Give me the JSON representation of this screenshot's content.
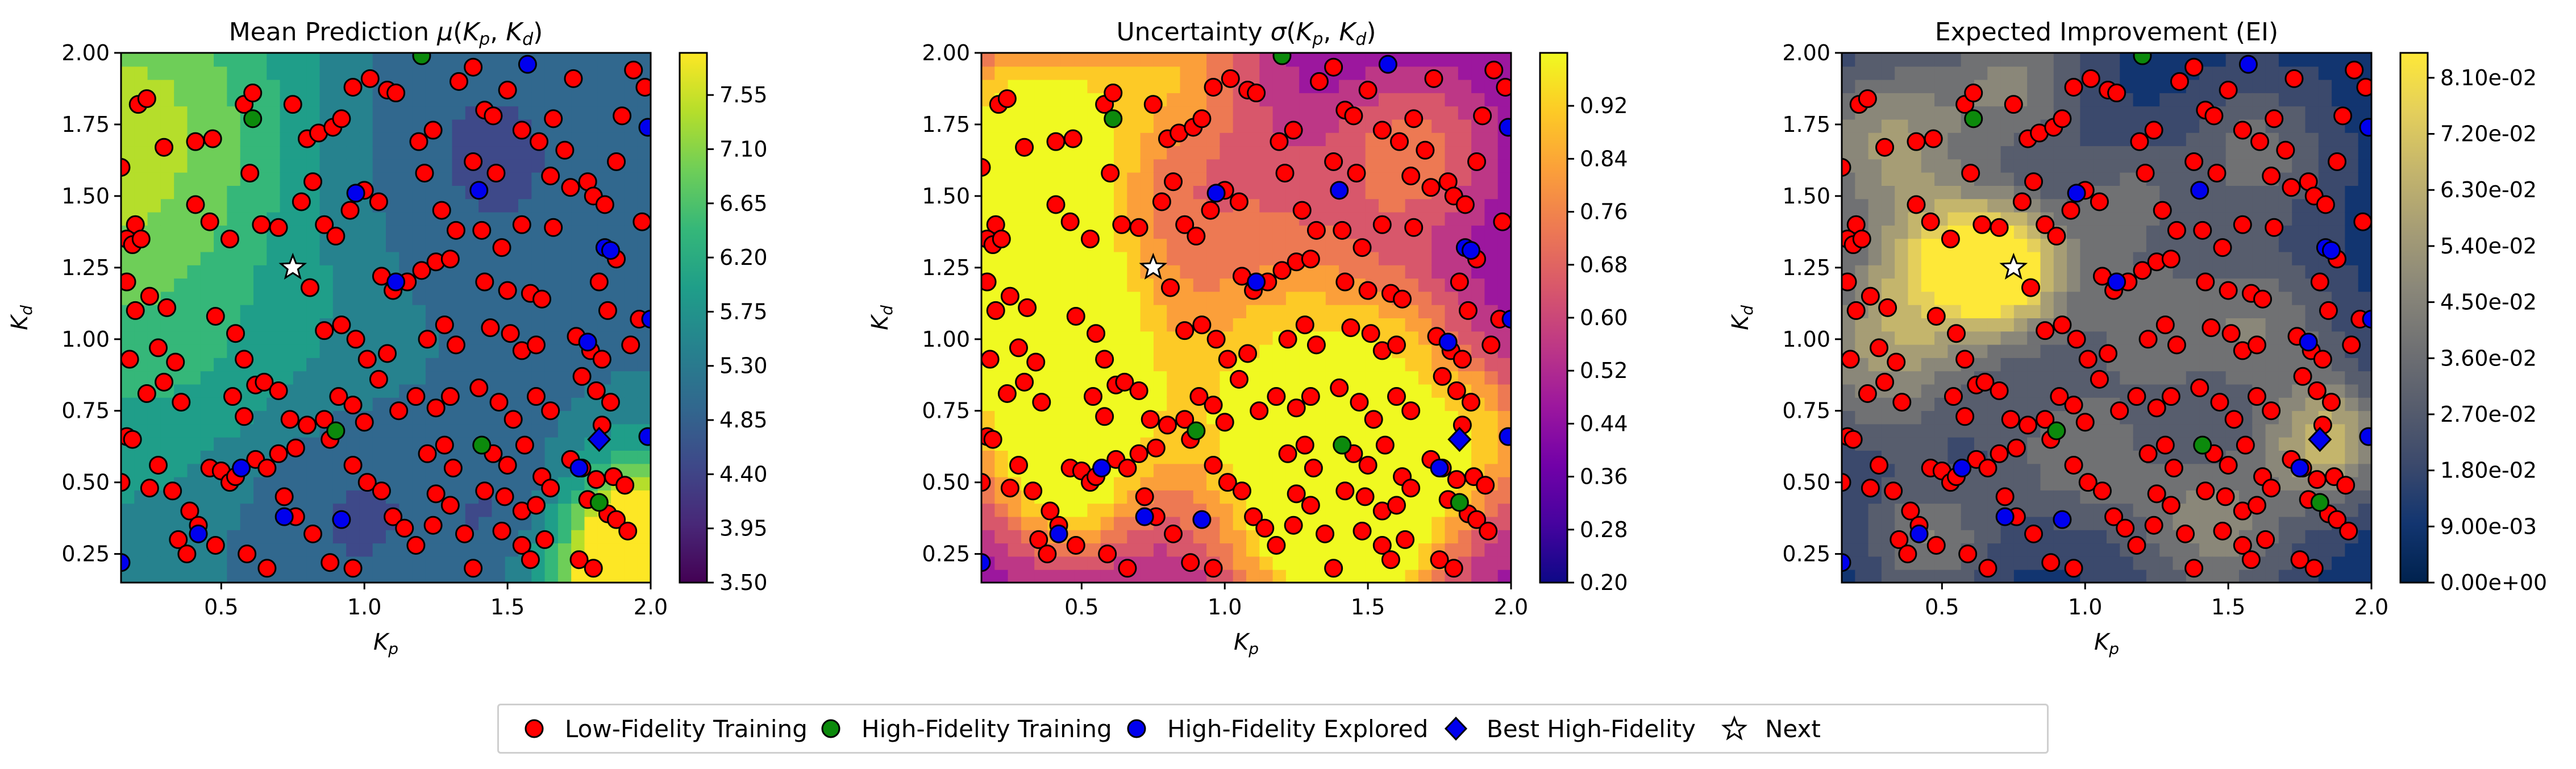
{
  "colors": {
    "low_fidelity": "#ff0000",
    "high_fidelity_training": "#0c8a0c",
    "high_fidelity_explored": "#0000ee",
    "best_high_fidelity": "#0000ee",
    "next": "#ffffff"
  },
  "chart_data": [
    {
      "type": "heatmap",
      "title": "Mean Prediction μ(Kp, Kd)",
      "title_parts": {
        "prefix": "Mean Prediction ",
        "symbol": "μ",
        "open": "(",
        "k1": "K",
        "s1": "p",
        "sep": ", ",
        "k2": "K",
        "s2": "d",
        "close": ")"
      },
      "xlabel": {
        "main": "K",
        "sub": "p"
      },
      "ylabel": {
        "main": "K",
        "sub": "d"
      },
      "xlim": [
        0.15,
        2.0
      ],
      "ylim": [
        0.15,
        2.0
      ],
      "xticks": [
        "0.5",
        "1.0",
        "1.5",
        "2.0"
      ],
      "yticks": [
        "0.25",
        "0.50",
        "0.75",
        "1.00",
        "1.25",
        "1.50",
        "1.75",
        "2.00"
      ],
      "colormap": "viridis",
      "colorbar_range": [
        3.5,
        7.9
      ],
      "colorbar_ticks": [
        "3.50",
        "3.95",
        "4.40",
        "4.85",
        "5.30",
        "5.75",
        "6.20",
        "6.65",
        "7.10",
        "7.55"
      ]
    },
    {
      "type": "heatmap",
      "title": "Uncertainty σ(Kp, Kd)",
      "title_parts": {
        "prefix": "Uncertainty ",
        "symbol": "σ",
        "open": "(",
        "k1": "K",
        "s1": "p",
        "sep": ", ",
        "k2": "K",
        "s2": "d",
        "close": ")"
      },
      "xlabel": {
        "main": "K",
        "sub": "p"
      },
      "ylabel": {
        "main": "K",
        "sub": "d"
      },
      "xlim": [
        0.15,
        2.0
      ],
      "ylim": [
        0.15,
        2.0
      ],
      "xticks": [
        "0.5",
        "1.0",
        "1.5",
        "2.0"
      ],
      "yticks": [
        "0.25",
        "0.50",
        "0.75",
        "1.00",
        "1.25",
        "1.50",
        "1.75",
        "2.00"
      ],
      "colormap": "plasma",
      "colorbar_range": [
        0.2,
        1.0
      ],
      "colorbar_ticks": [
        "0.20",
        "0.28",
        "0.36",
        "0.44",
        "0.52",
        "0.60",
        "0.68",
        "0.76",
        "0.84",
        "0.92"
      ]
    },
    {
      "type": "heatmap",
      "title": "Expected Improvement (EI)",
      "title_parts": {
        "prefix": "Expected Improvement (EI)",
        "symbol": "",
        "open": "",
        "k1": "",
        "s1": "",
        "sep": "",
        "k2": "",
        "s2": "",
        "close": ""
      },
      "xlabel": {
        "main": "K",
        "sub": "p"
      },
      "ylabel": {
        "main": "K",
        "sub": "d"
      },
      "xlim": [
        0.15,
        2.0
      ],
      "ylim": [
        0.15,
        2.0
      ],
      "xticks": [
        "0.5",
        "1.0",
        "1.5",
        "2.0"
      ],
      "yticks": [
        "0.25",
        "0.50",
        "0.75",
        "1.00",
        "1.25",
        "1.50",
        "1.75",
        "2.00"
      ],
      "colormap": "cividis",
      "colorbar_range": [
        0.0,
        0.085
      ],
      "colorbar_ticks": [
        "0.00e+00",
        "9.00e-03",
        "1.80e-02",
        "2.70e-02",
        "3.60e-02",
        "4.50e-02",
        "5.40e-02",
        "6.30e-02",
        "7.20e-02",
        "8.10e-02"
      ]
    }
  ],
  "points": {
    "low_fidelity": [
      [
        0.21,
        1.82
      ],
      [
        0.24,
        1.84
      ],
      [
        0.15,
        1.6
      ],
      [
        0.3,
        1.67
      ],
      [
        0.2,
        1.4
      ],
      [
        0.17,
        1.35
      ],
      [
        0.19,
        1.33
      ],
      [
        0.22,
        1.35
      ],
      [
        0.17,
        1.2
      ],
      [
        0.25,
        1.15
      ],
      [
        0.2,
        1.1
      ],
      [
        0.31,
        1.11
      ],
      [
        0.18,
        0.93
      ],
      [
        0.28,
        0.97
      ],
      [
        0.34,
        0.92
      ],
      [
        0.24,
        0.81
      ],
      [
        0.3,
        0.85
      ],
      [
        0.36,
        0.78
      ],
      [
        0.17,
        0.66
      ],
      [
        0.19,
        0.65
      ],
      [
        0.15,
        0.5
      ],
      [
        0.25,
        0.48
      ],
      [
        0.28,
        0.56
      ],
      [
        0.33,
        0.47
      ],
      [
        0.39,
        0.4
      ],
      [
        0.42,
        0.35
      ],
      [
        0.46,
        0.55
      ],
      [
        0.5,
        0.54
      ],
      [
        0.53,
        0.5
      ],
      [
        0.55,
        0.52
      ],
      [
        0.35,
        0.3
      ],
      [
        0.38,
        0.25
      ],
      [
        0.48,
        0.28
      ],
      [
        0.41,
        1.69
      ],
      [
        0.47,
        1.7
      ],
      [
        0.41,
        1.47
      ],
      [
        0.46,
        1.41
      ],
      [
        0.53,
        1.35
      ],
      [
        0.58,
        1.82
      ],
      [
        0.61,
        1.86
      ],
      [
        0.6,
        1.58
      ],
      [
        0.64,
        1.4
      ],
      [
        0.7,
        1.39
      ],
      [
        0.48,
        1.08
      ],
      [
        0.55,
        1.02
      ],
      [
        0.58,
        0.93
      ],
      [
        0.54,
        0.8
      ],
      [
        0.62,
        0.84
      ],
      [
        0.65,
        0.85
      ],
      [
        0.7,
        0.82
      ],
      [
        0.58,
        0.73
      ],
      [
        0.62,
        0.58
      ],
      [
        0.66,
        0.55
      ],
      [
        0.7,
        0.6
      ],
      [
        0.76,
        0.62
      ],
      [
        0.74,
        0.72
      ],
      [
        0.8,
        0.7
      ],
      [
        0.86,
        0.72
      ],
      [
        0.88,
        0.65
      ],
      [
        0.72,
        0.45
      ],
      [
        0.76,
        0.38
      ],
      [
        0.82,
        0.32
      ],
      [
        0.88,
        0.22
      ],
      [
        0.96,
        0.2
      ],
      [
        0.59,
        0.25
      ],
      [
        0.66,
        0.2
      ],
      [
        0.75,
        1.82
      ],
      [
        0.8,
        1.7
      ],
      [
        0.84,
        1.72
      ],
      [
        0.89,
        1.74
      ],
      [
        0.92,
        1.77
      ],
      [
        0.96,
        1.88
      ],
      [
        1.02,
        1.91
      ],
      [
        1.08,
        1.87
      ],
      [
        1.11,
        1.86
      ],
      [
        0.82,
        1.55
      ],
      [
        0.78,
        1.48
      ],
      [
        0.86,
        1.4
      ],
      [
        0.9,
        1.36
      ],
      [
        0.95,
        1.45
      ],
      [
        1.0,
        1.52
      ],
      [
        1.05,
        1.48
      ],
      [
        0.81,
        1.18
      ],
      [
        0.86,
        1.03
      ],
      [
        0.92,
        1.05
      ],
      [
        0.97,
        1.0
      ],
      [
        1.01,
        0.93
      ],
      [
        1.06,
        1.22
      ],
      [
        1.1,
        1.17
      ],
      [
        1.15,
        1.2
      ],
      [
        1.08,
        0.95
      ],
      [
        0.91,
        0.8
      ],
      [
        0.96,
        0.77
      ],
      [
        1.0,
        0.71
      ],
      [
        1.05,
        0.86
      ],
      [
        1.12,
        0.75
      ],
      [
        1.18,
        0.8
      ],
      [
        0.96,
        0.56
      ],
      [
        1.01,
        0.5
      ],
      [
        1.06,
        0.47
      ],
      [
        1.1,
        0.38
      ],
      [
        1.14,
        0.34
      ],
      [
        1.18,
        0.28
      ],
      [
        1.19,
        1.69
      ],
      [
        1.24,
        1.73
      ],
      [
        1.21,
        1.58
      ],
      [
        1.27,
        1.45
      ],
      [
        1.32,
        1.38
      ],
      [
        1.2,
        1.24
      ],
      [
        1.25,
        1.27
      ],
      [
        1.3,
        1.28
      ],
      [
        1.22,
        1.0
      ],
      [
        1.28,
        1.05
      ],
      [
        1.32,
        0.98
      ],
      [
        1.25,
        0.76
      ],
      [
        1.3,
        0.8
      ],
      [
        1.22,
        0.6
      ],
      [
        1.28,
        0.63
      ],
      [
        1.31,
        0.55
      ],
      [
        1.25,
        0.46
      ],
      [
        1.3,
        0.42
      ],
      [
        1.24,
        0.35
      ],
      [
        1.35,
        0.32
      ],
      [
        1.38,
        0.2
      ],
      [
        1.33,
        1.9
      ],
      [
        1.38,
        1.95
      ],
      [
        1.42,
        1.8
      ],
      [
        1.45,
        1.78
      ],
      [
        1.5,
        1.87
      ],
      [
        1.38,
        1.62
      ],
      [
        1.46,
        1.58
      ],
      [
        1.41,
        1.38
      ],
      [
        1.48,
        1.32
      ],
      [
        1.55,
        1.4
      ],
      [
        1.42,
        1.2
      ],
      [
        1.5,
        1.17
      ],
      [
        1.58,
        1.16
      ],
      [
        1.62,
        1.14
      ],
      [
        1.44,
        1.04
      ],
      [
        1.51,
        1.02
      ],
      [
        1.55,
        0.96
      ],
      [
        1.6,
        0.98
      ],
      [
        1.4,
        0.83
      ],
      [
        1.47,
        0.78
      ],
      [
        1.52,
        0.72
      ],
      [
        1.6,
        0.8
      ],
      [
        1.65,
        0.75
      ],
      [
        1.45,
        0.6
      ],
      [
        1.5,
        0.56
      ],
      [
        1.56,
        0.63
      ],
      [
        1.42,
        0.47
      ],
      [
        1.49,
        0.45
      ],
      [
        1.55,
        0.4
      ],
      [
        1.6,
        0.42
      ],
      [
        1.48,
        0.33
      ],
      [
        1.55,
        0.28
      ],
      [
        1.63,
        0.3
      ],
      [
        1.58,
        0.23
      ],
      [
        1.62,
        0.52
      ],
      [
        1.65,
        0.48
      ],
      [
        1.55,
        1.73
      ],
      [
        1.61,
        1.69
      ],
      [
        1.66,
        1.77
      ],
      [
        1.7,
        1.66
      ],
      [
        1.73,
        1.91
      ],
      [
        1.65,
        1.57
      ],
      [
        1.72,
        1.53
      ],
      [
        1.66,
        1.39
      ],
      [
        1.78,
        1.55
      ],
      [
        1.8,
        1.5
      ],
      [
        1.84,
        1.47
      ],
      [
        1.88,
        1.62
      ],
      [
        1.9,
        1.78
      ],
      [
        1.82,
        1.2
      ],
      [
        1.85,
        1.1
      ],
      [
        1.88,
        1.28
      ],
      [
        1.74,
        1.01
      ],
      [
        1.79,
        0.96
      ],
      [
        1.83,
        0.93
      ],
      [
        1.76,
        0.87
      ],
      [
        1.81,
        0.82
      ],
      [
        1.86,
        0.78
      ],
      [
        1.83,
        0.7
      ],
      [
        1.72,
        0.58
      ],
      [
        1.76,
        0.55
      ],
      [
        1.81,
        0.51
      ],
      [
        1.87,
        0.52
      ],
      [
        1.91,
        0.49
      ],
      [
        1.78,
        0.44
      ],
      [
        1.85,
        0.39
      ],
      [
        1.88,
        0.37
      ],
      [
        1.92,
        0.33
      ],
      [
        1.75,
        0.23
      ],
      [
        1.8,
        0.2
      ],
      [
        1.96,
        1.07
      ],
      [
        1.93,
        0.98
      ],
      [
        1.97,
        1.41
      ],
      [
        1.98,
        1.88
      ],
      [
        1.94,
        1.94
      ]
    ],
    "high_fidelity_training": [
      [
        0.61,
        1.77
      ],
      [
        1.2,
        1.99
      ],
      [
        0.9,
        0.68
      ],
      [
        1.41,
        0.63
      ],
      [
        1.82,
        0.43
      ]
    ],
    "high_fidelity_explored": [
      [
        0.97,
        1.51
      ],
      [
        1.4,
        1.52
      ],
      [
        1.11,
        1.2
      ],
      [
        1.84,
        1.32
      ],
      [
        1.86,
        1.31
      ],
      [
        1.78,
        0.99
      ],
      [
        0.57,
        0.55
      ],
      [
        1.75,
        0.55
      ],
      [
        0.42,
        0.32
      ],
      [
        0.72,
        0.38
      ],
      [
        0.92,
        0.37
      ],
      [
        1.57,
        1.96
      ],
      [
        1.99,
        1.74
      ],
      [
        0.15,
        0.22
      ],
      [
        1.99,
        0.66
      ],
      [
        2.0,
        1.07
      ]
    ],
    "best_high_fidelity": [
      [
        1.82,
        0.65
      ]
    ],
    "next": [
      [
        0.75,
        1.25
      ]
    ]
  },
  "legend": {
    "placement": "bottom-center",
    "items": [
      {
        "label": "Low-Fidelity Training",
        "marker": "circle",
        "color": "#ff0000"
      },
      {
        "label": "High-Fidelity Training",
        "marker": "circle",
        "color": "#0c8a0c"
      },
      {
        "label": "High-Fidelity Explored",
        "marker": "circle",
        "color": "#0000ee"
      },
      {
        "label": "Best High-Fidelity",
        "marker": "diamond",
        "color": "#0000ee"
      },
      {
        "label": "Next",
        "marker": "star",
        "color": "#ffffff"
      }
    ]
  }
}
